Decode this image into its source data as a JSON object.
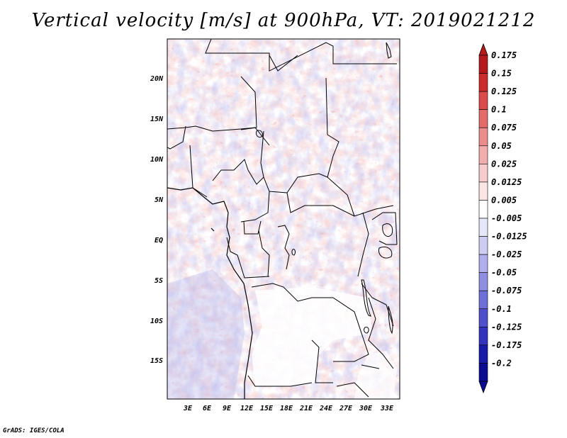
{
  "title": "Vertical velocity [m/s] at 900hPa, VT: 2019021212",
  "credit": "GrADS: IGES/COLA",
  "lat_labels": [
    "20N",
    "15N",
    "10N",
    "5N",
    "EQ",
    "5S",
    "10S",
    "15S"
  ],
  "lon_labels": [
    "3E",
    "6E",
    "9E",
    "12E",
    "15E",
    "18E",
    "21E",
    "24E",
    "27E",
    "30E",
    "33E"
  ],
  "colorbar": {
    "levels": [
      "0.175",
      "0.15",
      "0.125",
      "0.1",
      "0.075",
      "0.05",
      "0.025",
      "0.0125",
      "0.005",
      "-0.005",
      "-0.0125",
      "-0.025",
      "-0.05",
      "-0.075",
      "-0.1",
      "-0.125",
      "-0.175",
      "-0.2"
    ],
    "colors": [
      "#b4191c",
      "#cc2b2b",
      "#db4b4b",
      "#e56b6b",
      "#ec8d8d",
      "#f2adad",
      "#f7cccc",
      "#fbe5e5",
      "#ffffff",
      "#e7e7fa",
      "#cdcdf3",
      "#afafec",
      "#8f8fe2",
      "#6f6fd8",
      "#5050cc",
      "#3333bd",
      "#1a1aa8",
      "#0c0c91"
    ]
  },
  "colors": {
    "up_light": "#f7cccc",
    "up_mid": "#ec8d8d",
    "down_light": "#cdcdf3",
    "down_mid": "#8f8fe2",
    "land_line": "#000000"
  }
}
